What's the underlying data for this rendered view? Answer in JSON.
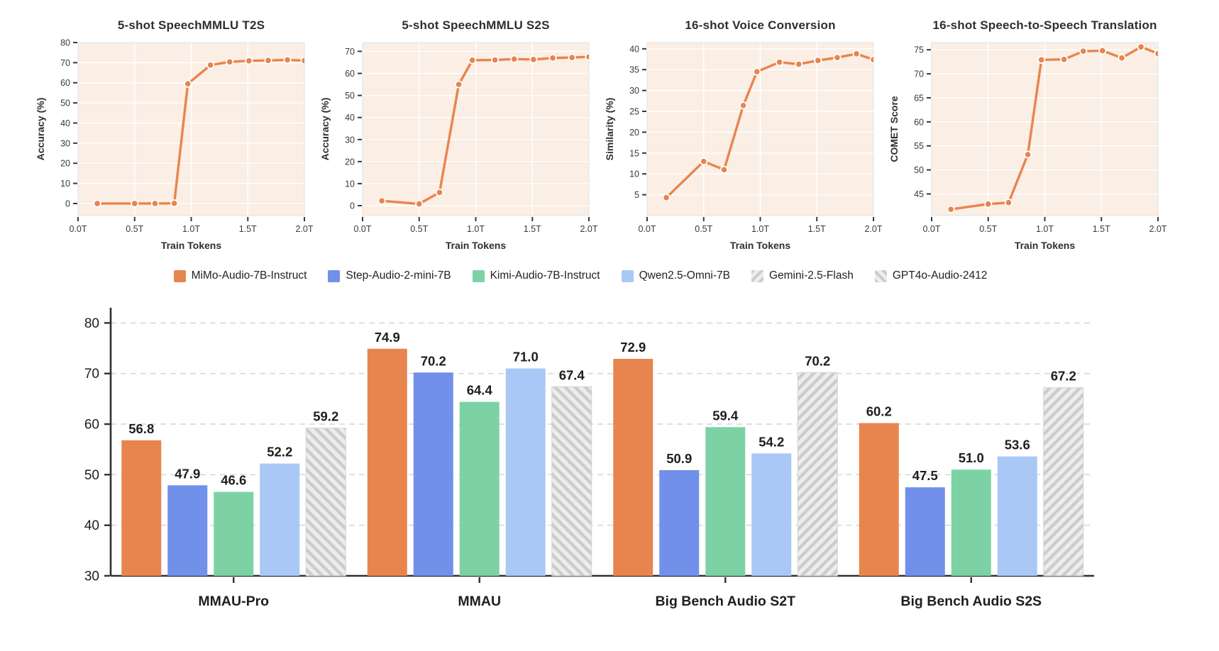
{
  "style": {
    "line_color": "#E8854E",
    "plot_bg": "#FAEEE5",
    "plot_border": "#E2E2E2",
    "grid_white": "#FFFFFF",
    "grid_dash": "#D8D8D8",
    "spine": "#2F2F2F",
    "title_text": "#2E2E2E",
    "tick_text": "#3A3A3A",
    "value_text": "#1E1E1E",
    "hatch_bg": "#EDEDED",
    "hatch_stripe": "#CCCCCC"
  },
  "chart_data": [
    {
      "type": "line",
      "title": "5-shot SpeechMMLU T2S",
      "xlabel": "Train Tokens",
      "ylabel": "Accuracy (%)",
      "x": [
        0.17,
        0.5,
        0.68,
        0.85,
        0.97,
        1.17,
        1.34,
        1.51,
        1.68,
        1.85,
        2.0
      ],
      "y": [
        0.0,
        0.0,
        0.0,
        0.1,
        59.5,
        68.8,
        70.4,
        70.9,
        71.1,
        71.4,
        71.0
      ],
      "xlim": [
        0,
        2
      ],
      "ylim": [
        -6,
        80
      ],
      "xticks": [
        0,
        0.5,
        1.0,
        1.5,
        2.0
      ],
      "xtick_labels": [
        "0.0T",
        "0.5T",
        "1.0T",
        "1.5T",
        "2.0T"
      ],
      "yticks": [
        0,
        10,
        20,
        30,
        40,
        50,
        60,
        70,
        80
      ]
    },
    {
      "type": "line",
      "title": "5-shot SpeechMMLU S2S",
      "xlabel": "Train Tokens",
      "ylabel": "Accuracy (%)",
      "x": [
        0.17,
        0.5,
        0.68,
        0.85,
        0.97,
        1.17,
        1.34,
        1.51,
        1.68,
        1.85,
        2.0
      ],
      "y": [
        2.2,
        0.8,
        6.0,
        55.0,
        66.0,
        66.1,
        66.5,
        66.3,
        67.0,
        67.2,
        67.5
      ],
      "xlim": [
        0,
        2
      ],
      "ylim": [
        -4.5,
        74
      ],
      "xticks": [
        0,
        0.5,
        1.0,
        1.5,
        2.0
      ],
      "xtick_labels": [
        "0.0T",
        "0.5T",
        "1.0T",
        "1.5T",
        "2.0T"
      ],
      "yticks": [
        0,
        10,
        20,
        30,
        40,
        50,
        60,
        70
      ]
    },
    {
      "type": "line",
      "title": "16-shot Voice Conversion",
      "xlabel": "Train Tokens",
      "ylabel": "Similarity (%)",
      "x": [
        0.17,
        0.5,
        0.68,
        0.85,
        0.97,
        1.17,
        1.34,
        1.51,
        1.68,
        1.85,
        2.0
      ],
      "y": [
        4.3,
        13.0,
        11.0,
        26.4,
        34.5,
        36.8,
        36.3,
        37.2,
        37.9,
        38.8,
        37.4
      ],
      "xlim": [
        0,
        2
      ],
      "ylim": [
        0,
        41.5
      ],
      "xticks": [
        0,
        0.5,
        1.0,
        1.5,
        2.0
      ],
      "xtick_labels": [
        "0.0T",
        "0.5T",
        "1.0T",
        "1.5T",
        "2.0T"
      ],
      "yticks": [
        5,
        10,
        15,
        20,
        25,
        30,
        35,
        40
      ]
    },
    {
      "type": "line",
      "title": "16-shot Speech-to-Speech Translation",
      "xlabel": "Train Tokens",
      "ylabel": "COMET Score",
      "x": [
        0.17,
        0.5,
        0.68,
        0.85,
        0.97,
        1.17,
        1.34,
        1.51,
        1.68,
        1.85,
        2.0
      ],
      "y": [
        41.8,
        42.9,
        43.2,
        53.2,
        72.9,
        73.0,
        74.7,
        74.8,
        73.3,
        75.6,
        74.2
      ],
      "xlim": [
        0,
        2
      ],
      "ylim": [
        40.5,
        76.5
      ],
      "xticks": [
        0,
        0.5,
        1.0,
        1.5,
        2.0
      ],
      "xtick_labels": [
        "0.0T",
        "0.5T",
        "1.0T",
        "1.5T",
        "2.0T"
      ],
      "yticks": [
        45,
        50,
        55,
        60,
        65,
        70,
        75
      ]
    },
    {
      "type": "bar",
      "categories": [
        "MMAU-Pro",
        "MMAU",
        "Big Bench Audio S2T",
        "Big Bench Audio S2S"
      ],
      "series": [
        {
          "name": "MiMo-Audio-7B-Instruct",
          "color": "#E8854E",
          "hatch": null,
          "values": [
            56.8,
            74.9,
            72.9,
            60.2
          ]
        },
        {
          "name": "Step-Audio-2-mini-7B",
          "color": "#7090EA",
          "hatch": null,
          "values": [
            47.9,
            70.2,
            50.9,
            47.5
          ]
        },
        {
          "name": "Kimi-Audio-7B-Instruct",
          "color": "#7DD2A5",
          "hatch": null,
          "values": [
            46.6,
            64.4,
            59.4,
            51.0
          ]
        },
        {
          "name": "Qwen2.5-Omni-7B",
          "color": "#A9C8F5",
          "hatch": null,
          "values": [
            52.2,
            71.0,
            54.2,
            53.6
          ]
        },
        {
          "name": "Gemini-2.5-Flash",
          "color": "#CCCCCC",
          "hatch": "diagonal-up",
          "values": [
            59.2,
            67.4,
            null,
            null
          ]
        },
        {
          "name": "GPT4o-Audio-2412",
          "color": "#CCCCCC",
          "hatch": "diagonal-down",
          "values": [
            null,
            null,
            70.2,
            67.2
          ]
        }
      ],
      "yticks": [
        30,
        40,
        50,
        60,
        70,
        80
      ],
      "ylim": [
        30,
        83
      ],
      "grid": "dashed-horizontal",
      "legend_position": "top"
    }
  ]
}
